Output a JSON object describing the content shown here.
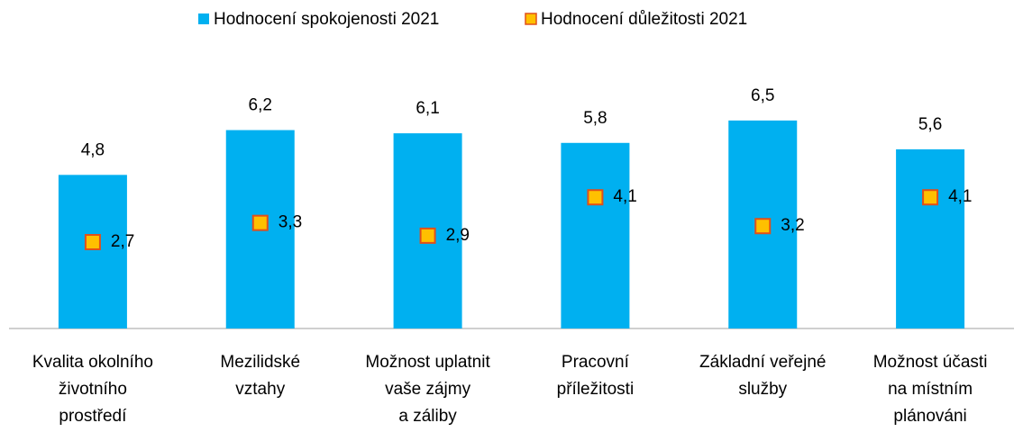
{
  "chart_data": {
    "type": "bar",
    "categories": [
      "Kvalita okolního\nživotního\nprostředí",
      "Mezilidské\nvztahy",
      "Možnost uplatnit\nvaše zájmy\na záliby",
      "Pracovní\npříležitosti",
      "Základní veřejné\nslužby",
      "Možnost účasti\nna místním\nplánováni"
    ],
    "series": [
      {
        "name": "Hodnocení spokojenosti 2021",
        "type": "bar",
        "color": "#00b0f0",
        "values": [
          4.8,
          6.2,
          6.1,
          5.8,
          6.5,
          5.6
        ],
        "value_labels": [
          "4,8",
          "6,2",
          "6,1",
          "5,8",
          "6,5",
          "5,6"
        ]
      },
      {
        "name": "Hodnocení důležitosti 2021",
        "type": "scatter",
        "color": "#ffc000",
        "edge_color": "#e0501a",
        "values": [
          2.7,
          3.3,
          2.9,
          4.1,
          3.2,
          4.1
        ],
        "value_labels": [
          "2,7",
          "3,3",
          "2,9",
          "4,1",
          "3,2",
          "4,1"
        ]
      }
    ],
    "ylim": [
      0,
      9
    ]
  }
}
